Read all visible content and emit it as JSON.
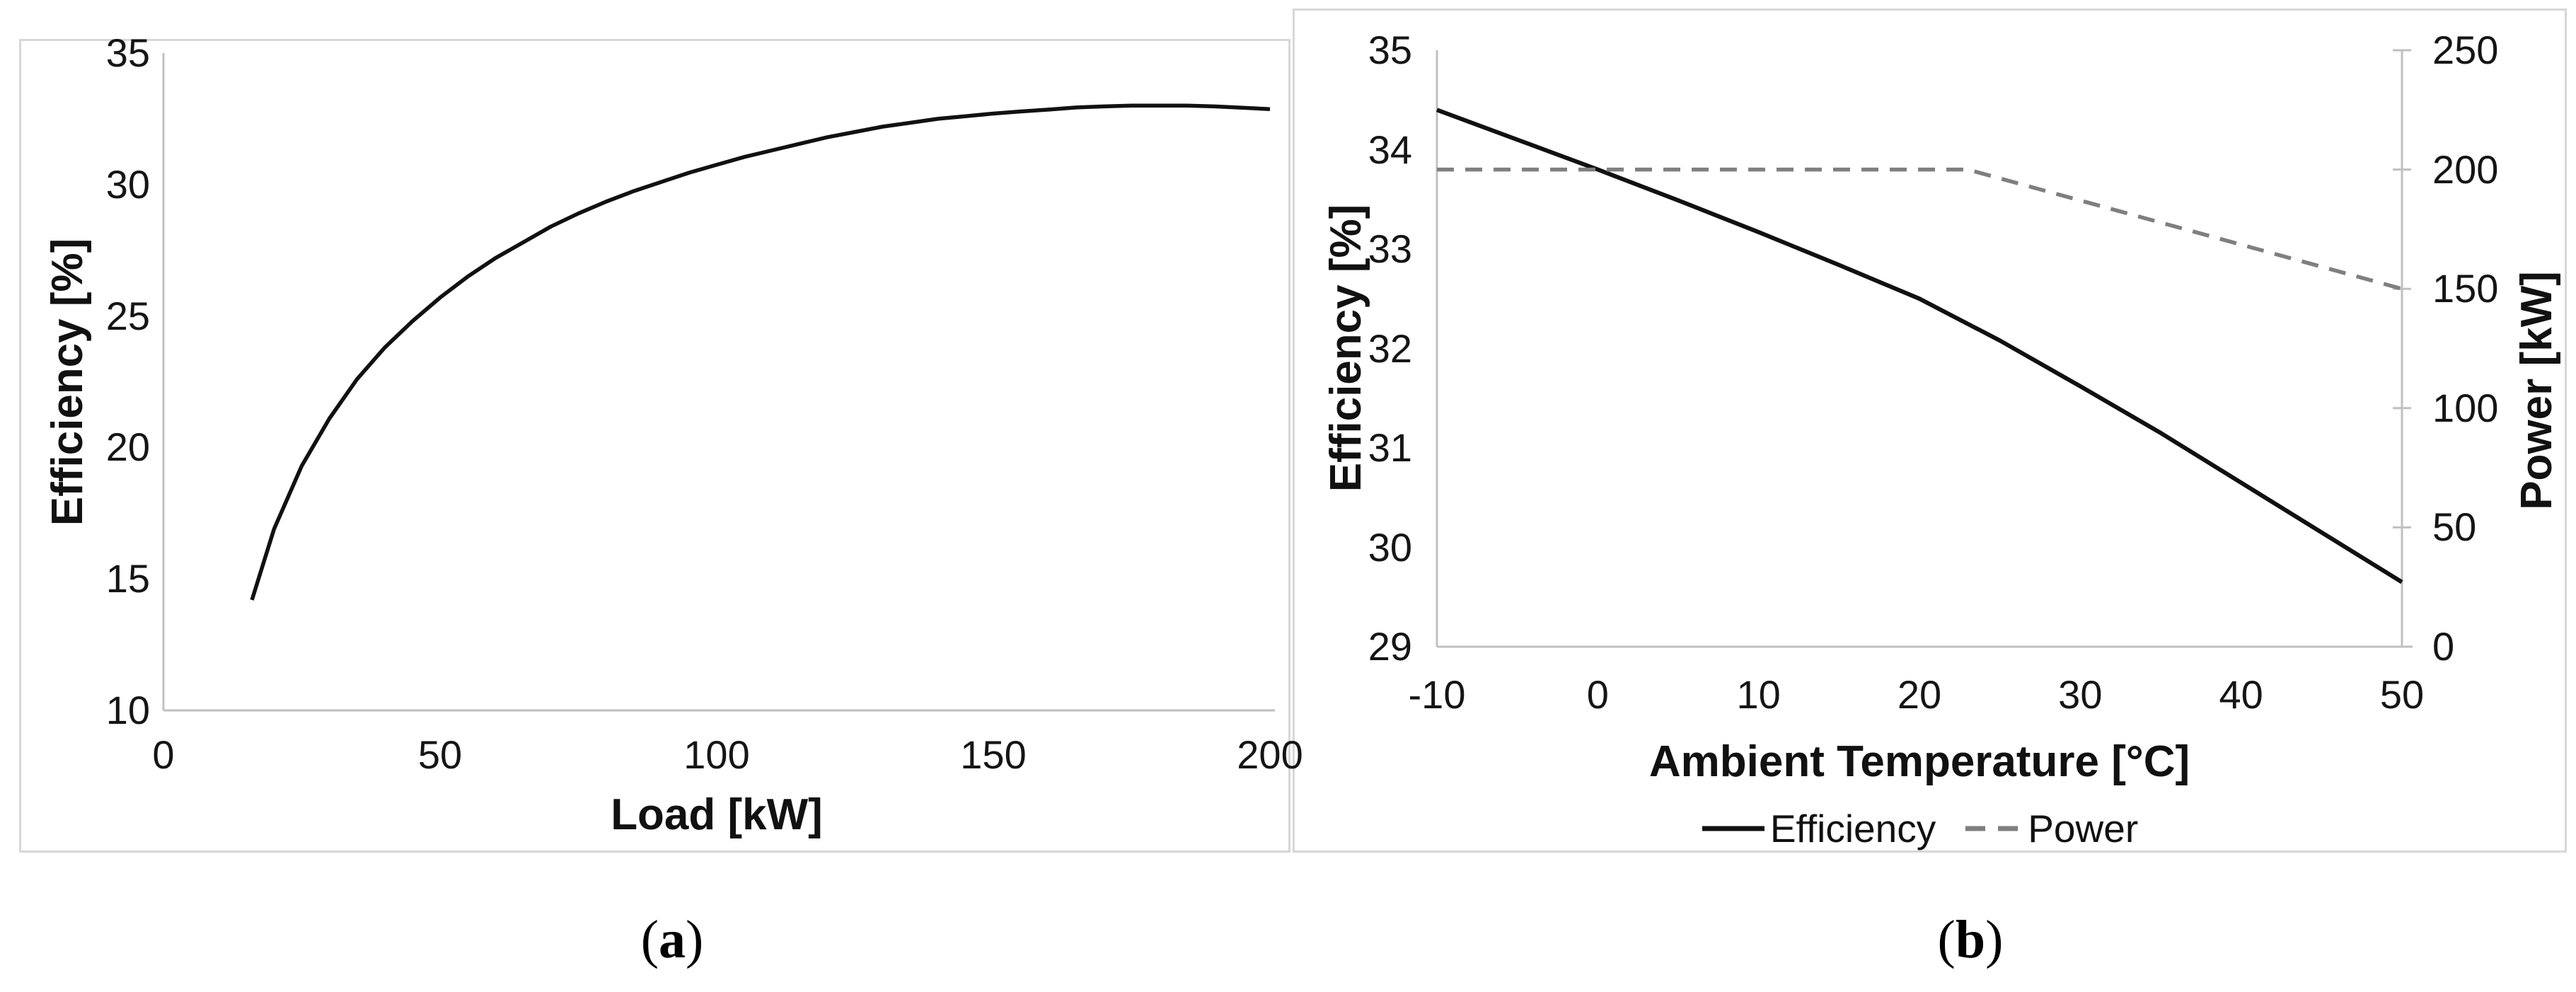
{
  "figure": {
    "captions": [
      {
        "open": "(",
        "letter": "a",
        "close": ")"
      },
      {
        "open": "(",
        "letter": "b",
        "close": ")"
      }
    ]
  },
  "colors": {
    "series_black": "#111111",
    "series_gray": "#7f7f7f",
    "axis_line": "#c0c0c0",
    "panel_border": "#d7d7d7"
  },
  "chart_data": [
    {
      "id": "load-vs-efficiency",
      "type": "line",
      "title": "",
      "xlabel": "Load [kW]",
      "ylabel": "Efficiency [%]",
      "xlim": [
        0,
        200
      ],
      "ylim": [
        10,
        35
      ],
      "xticks": [
        0,
        50,
        100,
        150,
        200
      ],
      "yticks": [
        10,
        15,
        20,
        25,
        30,
        35
      ],
      "grid": false,
      "legend_position": "none",
      "series": [
        {
          "name": "Efficiency",
          "style": "solid",
          "color": "#111111",
          "width": 5.5,
          "x": [
            16,
            20,
            25,
            30,
            35,
            40,
            45,
            50,
            55,
            60,
            65,
            70,
            75,
            80,
            85,
            90,
            95,
            100,
            105,
            110,
            115,
            120,
            125,
            130,
            135,
            140,
            145,
            150,
            155,
            160,
            165,
            170,
            175,
            180,
            185,
            190,
            195,
            200
          ],
          "y": [
            14.2,
            16.9,
            19.3,
            21.1,
            22.6,
            23.8,
            24.8,
            25.7,
            26.5,
            27.2,
            27.8,
            28.4,
            28.9,
            29.35,
            29.75,
            30.1,
            30.45,
            30.75,
            31.05,
            31.3,
            31.55,
            31.8,
            32.0,
            32.2,
            32.35,
            32.5,
            32.6,
            32.7,
            32.78,
            32.85,
            32.93,
            32.97,
            33.0,
            33.0,
            33.0,
            32.97,
            32.92,
            32.87
          ]
        }
      ]
    },
    {
      "id": "ambient-temperature-vs-efficiency-and-power",
      "type": "line",
      "title": "",
      "xlabel": "Ambient Temperature [°C]",
      "ylabel_left": "Efficiency [%]",
      "ylabel_right": "Power [kW]",
      "xlim": [
        -10,
        50
      ],
      "ylim_left": [
        29,
        35
      ],
      "ylim_right": [
        0,
        250
      ],
      "xticks": [
        -10,
        0,
        10,
        20,
        30,
        40,
        50
      ],
      "yticks_left": [
        29,
        30,
        31,
        32,
        33,
        34,
        35
      ],
      "yticks_right": [
        0,
        50,
        100,
        150,
        200,
        250
      ],
      "grid": false,
      "legend_position": "bottom",
      "series": [
        {
          "name": "Efficiency",
          "axis": "left",
          "style": "solid",
          "color": "#111111",
          "width": 6,
          "x": [
            -10,
            -5,
            0,
            5,
            10,
            15,
            20,
            25,
            30,
            35,
            40,
            45,
            50
          ],
          "y": [
            34.4,
            34.1,
            33.8,
            33.49,
            33.17,
            32.84,
            32.5,
            32.08,
            31.62,
            31.15,
            30.65,
            30.15,
            29.65
          ]
        },
        {
          "name": "Power",
          "axis": "right",
          "style": "dashed",
          "color": "#7f7f7f",
          "width": 5.5,
          "x": [
            -10,
            23,
            50
          ],
          "y": [
            200,
            200,
            150
          ]
        }
      ]
    }
  ]
}
